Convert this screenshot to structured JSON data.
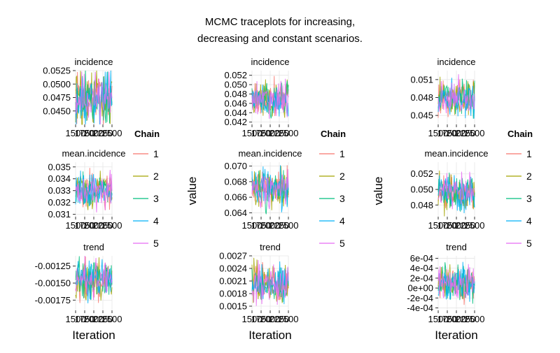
{
  "title_line1": "MCMC traceplots for increasing,",
  "title_line2": "decreasing and constant scenarios.",
  "colors": {
    "chains": [
      "#F8766D",
      "#A3A500",
      "#00BF7D",
      "#00B0F6",
      "#E76BF3"
    ],
    "panel_bg": "#ffffff",
    "grid": "#e6e6e6"
  },
  "chart_data": [
    {
      "type": "line",
      "x_axis_label": "Iteration",
      "y_axis_label": "",
      "legend": {
        "title": "Chain",
        "entries": [
          "1",
          "2",
          "3",
          "4",
          "5"
        ],
        "placement": "right"
      },
      "x": {
        "range": [
          1500,
          2500
        ],
        "ticks": [
          1500,
          1750,
          2000,
          2250,
          2500
        ],
        "tick_labels": [
          "1500",
          "1750",
          "2000",
          "2250",
          "2500"
        ]
      },
      "panels": [
        {
          "strip": "incidence",
          "ylim": [
            0.0425,
            0.0525
          ],
          "center": 0.0475,
          "spread": 0.0024,
          "tick_values": [
            0.045,
            0.0475,
            0.05,
            0.0525
          ],
          "tick_labels": [
            "0.0450",
            "0.0475",
            "0.0500",
            "0.0525"
          ],
          "series_names": [
            "1",
            "2",
            "3",
            "4",
            "5"
          ]
        },
        {
          "strip": "mean.incidence",
          "ylim": [
            0.0308,
            0.0354
          ],
          "center": 0.033,
          "spread": 0.0007,
          "tick_values": [
            0.031,
            0.032,
            0.033,
            0.034,
            0.035
          ],
          "tick_labels": [
            "0.031",
            "0.032",
            "0.033",
            "0.034",
            "0.035"
          ],
          "series_names": [
            "1",
            "2",
            "3",
            "4",
            "5"
          ]
        },
        {
          "strip": "trend",
          "ylim": [
            -0.0019,
            -0.0011
          ],
          "center": -0.00145,
          "spread": 0.00014,
          "tick_values": [
            -0.00175,
            -0.0015,
            -0.00125
          ],
          "tick_labels": [
            "-0.00175",
            "-0.00150",
            "-0.00125"
          ],
          "series_names": [
            "1",
            "2",
            "3",
            "4",
            "5"
          ]
        }
      ]
    },
    {
      "type": "line",
      "x_axis_label": "Iteration",
      "y_axis_label": "value",
      "legend": {
        "title": "Chain",
        "entries": [
          "1",
          "2",
          "3",
          "4",
          "5"
        ],
        "placement": "right"
      },
      "x": {
        "range": [
          1500,
          2500
        ],
        "ticks": [
          1500,
          1750,
          2000,
          2250,
          2500
        ],
        "tick_labels": [
          "1500",
          "1750",
          "2000",
          "2250",
          "2500"
        ]
      },
      "panels": [
        {
          "strip": "incidence",
          "ylim": [
            0.0415,
            0.053
          ],
          "center": 0.047,
          "spread": 0.0018,
          "tick_values": [
            0.042,
            0.044,
            0.046,
            0.048,
            0.05,
            0.052
          ],
          "tick_labels": [
            "0.042",
            "0.044",
            "0.046",
            "0.048",
            "0.050",
            "0.052"
          ],
          "series_names": [
            "1",
            "2",
            "3",
            "4",
            "5"
          ]
        },
        {
          "strip": "mean.incidence",
          "ylim": [
            0.0635,
            0.0705
          ],
          "center": 0.067,
          "spread": 0.0012,
          "tick_values": [
            0.064,
            0.066,
            0.068,
            0.07
          ],
          "tick_labels": [
            "0.064",
            "0.066",
            "0.068",
            "0.070"
          ],
          "series_names": [
            "1",
            "2",
            "3",
            "4",
            "5"
          ]
        },
        {
          "strip": "trend",
          "ylim": [
            0.0014,
            0.0027
          ],
          "center": 0.00205,
          "spread": 0.00022,
          "tick_values": [
            0.0015,
            0.0018,
            0.0021,
            0.0024,
            0.0027
          ],
          "tick_labels": [
            "0.0015",
            "0.0018",
            "0.0021",
            "0.0024",
            "0.0027"
          ],
          "series_names": [
            "1",
            "2",
            "3",
            "4",
            "5"
          ]
        }
      ]
    },
    {
      "type": "line",
      "x_axis_label": "Iteration",
      "y_axis_label": "value",
      "legend": {
        "title": "Chain",
        "entries": [
          "1",
          "2",
          "3",
          "4",
          "5"
        ],
        "placement": "right"
      },
      "x": {
        "range": [
          1500,
          2500
        ],
        "ticks": [
          1500,
          1750,
          2000,
          2250,
          2500
        ],
        "tick_labels": [
          "1500",
          "1750",
          "2000",
          "2250",
          "2500"
        ]
      },
      "panels": [
        {
          "strip": "incidence",
          "ylim": [
            0.0435,
            0.0525
          ],
          "center": 0.048,
          "spread": 0.0015,
          "tick_values": [
            0.045,
            0.048,
            0.051
          ],
          "tick_labels": [
            "0.045",
            "0.048",
            "0.051"
          ],
          "series_names": [
            "1",
            "2",
            "3",
            "4",
            "5"
          ]
        },
        {
          "strip": "mean.incidence",
          "ylim": [
            0.0465,
            0.0535
          ],
          "center": 0.0497,
          "spread": 0.0011,
          "tick_values": [
            0.048,
            0.05,
            0.052
          ],
          "tick_labels": [
            "0.048",
            "0.050",
            "0.052"
          ],
          "series_names": [
            "1",
            "2",
            "3",
            "4",
            "5"
          ]
        },
        {
          "strip": "trend",
          "ylim": [
            -0.00045,
            0.00065
          ],
          "center": 0.0001,
          "spread": 0.00018,
          "tick_values": [
            -0.0004,
            -0.0002,
            0,
            0.0002,
            0.0004,
            0.0006
          ],
          "tick_labels": [
            "-4e-04",
            "-2e-04",
            "0e+00",
            "2e-04",
            "4e-04",
            "6e-04"
          ],
          "series_names": [
            "1",
            "2",
            "3",
            "4",
            "5"
          ]
        }
      ]
    }
  ]
}
